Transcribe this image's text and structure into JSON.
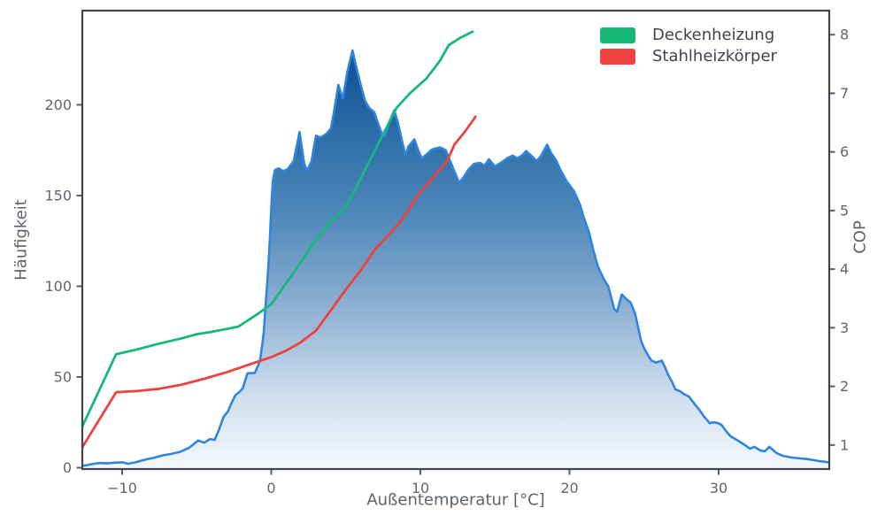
{
  "legend": {
    "items": [
      {
        "label": "Deckenheizung",
        "color": "#17b978"
      },
      {
        "label": "Stahlheizkörper",
        "color": "#ee423e"
      }
    ]
  },
  "chart_data": {
    "type": "area",
    "title": "",
    "grid": false,
    "frame_color": "#3f444e",
    "tick_color": "#5a606a",
    "tick_label_color": "#60666e",
    "x_axis": {
      "label": "Außentemperatur [°C]",
      "range": [
        -12.67,
        37.42
      ],
      "ticks": [
        -10,
        0,
        10,
        20,
        30
      ],
      "tick_labels": [
        "−10",
        "0",
        "10",
        "20",
        "30"
      ]
    },
    "y_left": {
      "label": "Häufigkeit",
      "range": [
        -0.73,
        251.9
      ],
      "ticks": [
        0,
        50,
        100,
        150,
        200
      ],
      "tick_labels": [
        "0",
        "50",
        "100",
        "150",
        "200"
      ]
    },
    "y_right": {
      "label": "COP",
      "range": [
        0.59,
        8.41
      ],
      "ticks": [
        1,
        2,
        3,
        4,
        5,
        6,
        7,
        8
      ],
      "tick_labels": [
        "1",
        "2",
        "3",
        "4",
        "5",
        "6",
        "7",
        "8"
      ]
    },
    "fill_gradient_stops": [
      [
        0,
        "#0f4d90"
      ],
      [
        0.2,
        "#2c6da8"
      ],
      [
        0.4,
        "#5088ba"
      ],
      [
        0.62,
        "#8fb1d3"
      ],
      [
        0.83,
        "#cfdfee"
      ],
      [
        1,
        "#f3f8fc"
      ]
    ],
    "series": [
      {
        "name": "Häufigkeit Histogramm",
        "type": "area",
        "axis": "left",
        "color": "#2f86e0",
        "fill": "blues-gradient",
        "points": [
          [
            -12.7,
            1
          ],
          [
            -12.3,
            1.5
          ],
          [
            -11.9,
            2.2
          ],
          [
            -11.5,
            2.6
          ],
          [
            -11,
            2.4
          ],
          [
            -10.5,
            2.8
          ],
          [
            -10,
            3
          ],
          [
            -9.6,
            2.2
          ],
          [
            -9.1,
            3
          ],
          [
            -8.5,
            4.4
          ],
          [
            -7.9,
            5.4
          ],
          [
            -7.3,
            6.8
          ],
          [
            -6.7,
            7.6
          ],
          [
            -6.1,
            8.8
          ],
          [
            -5.5,
            11
          ],
          [
            -4.9,
            15
          ],
          [
            -4.5,
            13.8
          ],
          [
            -4.1,
            15.8
          ],
          [
            -3.8,
            15.3
          ],
          [
            -3.5,
            21
          ],
          [
            -3.2,
            28
          ],
          [
            -2.9,
            31
          ],
          [
            -2.7,
            35
          ],
          [
            -2.4,
            40
          ],
          [
            -2.1,
            42
          ],
          [
            -1.9,
            44
          ],
          [
            -1.6,
            52
          ],
          [
            -1.1,
            52.3
          ],
          [
            -0.9,
            56
          ],
          [
            -0.75,
            59
          ],
          [
            -0.6,
            68
          ],
          [
            -0.5,
            75
          ],
          [
            -0.4,
            87
          ],
          [
            -0.3,
            98
          ],
          [
            -0.2,
            110
          ],
          [
            -0.1,
            125
          ],
          [
            0,
            143
          ],
          [
            0.1,
            158
          ],
          [
            0.25,
            164
          ],
          [
            0.5,
            165
          ],
          [
            0.8,
            163.5
          ],
          [
            1.1,
            164.5
          ],
          [
            1.5,
            169
          ],
          [
            1.9,
            185
          ],
          [
            2.2,
            168
          ],
          [
            2.4,
            163.5
          ],
          [
            2.7,
            169
          ],
          [
            3,
            183
          ],
          [
            3.3,
            182
          ],
          [
            3.7,
            184
          ],
          [
            4,
            187
          ],
          [
            4.2,
            196
          ],
          [
            4.5,
            211
          ],
          [
            4.8,
            203.5
          ],
          [
            5.1,
            218
          ],
          [
            5.45,
            230
          ],
          [
            5.7,
            221
          ],
          [
            6,
            211
          ],
          [
            6.3,
            202
          ],
          [
            6.6,
            198
          ],
          [
            6.9,
            196
          ],
          [
            7.15,
            190
          ],
          [
            7.4,
            184.5
          ],
          [
            7.6,
            182.5
          ],
          [
            7.9,
            190
          ],
          [
            8.25,
            197
          ],
          [
            8.5,
            190
          ],
          [
            8.8,
            179
          ],
          [
            9,
            172.5
          ],
          [
            9.2,
            177
          ],
          [
            9.6,
            181
          ],
          [
            9.9,
            174
          ],
          [
            10.1,
            170.5
          ],
          [
            10.4,
            172.5
          ],
          [
            10.7,
            175
          ],
          [
            11,
            176
          ],
          [
            11.35,
            176.5
          ],
          [
            11.7,
            175
          ],
          [
            12,
            169
          ],
          [
            12.3,
            163
          ],
          [
            12.6,
            157
          ],
          [
            12.9,
            160
          ],
          [
            13.2,
            164
          ],
          [
            13.6,
            167.5
          ],
          [
            14,
            168
          ],
          [
            14.3,
            166.5
          ],
          [
            14.6,
            170
          ],
          [
            15,
            166
          ],
          [
            15.4,
            168
          ],
          [
            15.8,
            170.5
          ],
          [
            16.2,
            172
          ],
          [
            16.5,
            170.5
          ],
          [
            16.8,
            172
          ],
          [
            17.1,
            174.5
          ],
          [
            17.5,
            171.5
          ],
          [
            17.8,
            169
          ],
          [
            18.1,
            172
          ],
          [
            18.5,
            178
          ],
          [
            18.8,
            173
          ],
          [
            19.1,
            169.5
          ],
          [
            19.4,
            164
          ],
          [
            19.8,
            158
          ],
          [
            20.3,
            152.5
          ],
          [
            20.7,
            145
          ],
          [
            21,
            137
          ],
          [
            21.3,
            130
          ],
          [
            21.6,
            120
          ],
          [
            21.9,
            111
          ],
          [
            22.3,
            104
          ],
          [
            22.6,
            100
          ],
          [
            23,
            87.5
          ],
          [
            23.2,
            86
          ],
          [
            23.5,
            95.5
          ],
          [
            23.8,
            93
          ],
          [
            24.1,
            91
          ],
          [
            24.4,
            85
          ],
          [
            24.6,
            77.5
          ],
          [
            24.8,
            70
          ],
          [
            25,
            66
          ],
          [
            25.3,
            61.5
          ],
          [
            25.5,
            59
          ],
          [
            25.8,
            58
          ],
          [
            26,
            58.5
          ],
          [
            26.2,
            59
          ],
          [
            26.4,
            55.5
          ],
          [
            26.6,
            51.5
          ],
          [
            26.9,
            47
          ],
          [
            27.1,
            43.2
          ],
          [
            27.4,
            42.2
          ],
          [
            27.7,
            40.5
          ],
          [
            28,
            39.3
          ],
          [
            28.4,
            35
          ],
          [
            28.7,
            32
          ],
          [
            29,
            28.5
          ],
          [
            29.4,
            24.6
          ],
          [
            29.7,
            25
          ],
          [
            30,
            24.5
          ],
          [
            30.2,
            23.6
          ],
          [
            30.5,
            20.2
          ],
          [
            30.8,
            17.3
          ],
          [
            31.2,
            15.4
          ],
          [
            31.7,
            12.9
          ],
          [
            32.1,
            10.5
          ],
          [
            32.4,
            11.5
          ],
          [
            32.8,
            9.5
          ],
          [
            33.1,
            9
          ],
          [
            33.4,
            11.5
          ],
          [
            33.9,
            8
          ],
          [
            34.3,
            6.6
          ],
          [
            34.9,
            5.6
          ],
          [
            35.5,
            5.1
          ],
          [
            36.1,
            4.6
          ],
          [
            36.7,
            3.7
          ],
          [
            37.2,
            3.2
          ],
          [
            37.42,
            2.8
          ]
        ]
      },
      {
        "name": "Deckenheizung",
        "type": "line",
        "axis": "right",
        "color": "#17b978",
        "points": [
          [
            -12.7,
            1.3
          ],
          [
            -10.4,
            2.55
          ],
          [
            -9,
            2.63
          ],
          [
            -7.5,
            2.73
          ],
          [
            -6,
            2.82
          ],
          [
            -5,
            2.89
          ],
          [
            -4,
            2.93
          ],
          [
            -3,
            2.98
          ],
          [
            -2.2,
            3.02
          ],
          [
            -1,
            3.22
          ],
          [
            0,
            3.4
          ],
          [
            1,
            3.76
          ],
          [
            2,
            4.12
          ],
          [
            3,
            4.5
          ],
          [
            4,
            4.82
          ],
          [
            5,
            5.05
          ],
          [
            6,
            5.55
          ],
          [
            7,
            6.05
          ],
          [
            8,
            6.55
          ],
          [
            8.4,
            6.75
          ],
          [
            9.3,
            7
          ],
          [
            10.4,
            7.25
          ],
          [
            11.3,
            7.55
          ],
          [
            11.9,
            7.82
          ],
          [
            12.7,
            7.95
          ],
          [
            13.5,
            8.05
          ]
        ]
      },
      {
        "name": "Stahlheizkörper",
        "type": "line",
        "axis": "right",
        "color": "#ee423e",
        "points": [
          [
            -12.7,
            0.95
          ],
          [
            -10.4,
            1.9
          ],
          [
            -9,
            1.92
          ],
          [
            -7.5,
            1.96
          ],
          [
            -6,
            2.03
          ],
          [
            -4.5,
            2.13
          ],
          [
            -3,
            2.24
          ],
          [
            -1.5,
            2.37
          ],
          [
            0,
            2.5
          ],
          [
            1,
            2.61
          ],
          [
            1.9,
            2.74
          ],
          [
            3,
            2.95
          ],
          [
            4,
            3.3
          ],
          [
            5,
            3.65
          ],
          [
            6,
            3.98
          ],
          [
            7,
            4.35
          ],
          [
            8,
            4.62
          ],
          [
            8.7,
            4.82
          ],
          [
            9.9,
            5.28
          ],
          [
            11.2,
            5.67
          ],
          [
            11.8,
            5.85
          ],
          [
            12.3,
            6.13
          ],
          [
            13,
            6.35
          ],
          [
            13.7,
            6.6
          ]
        ]
      }
    ]
  }
}
